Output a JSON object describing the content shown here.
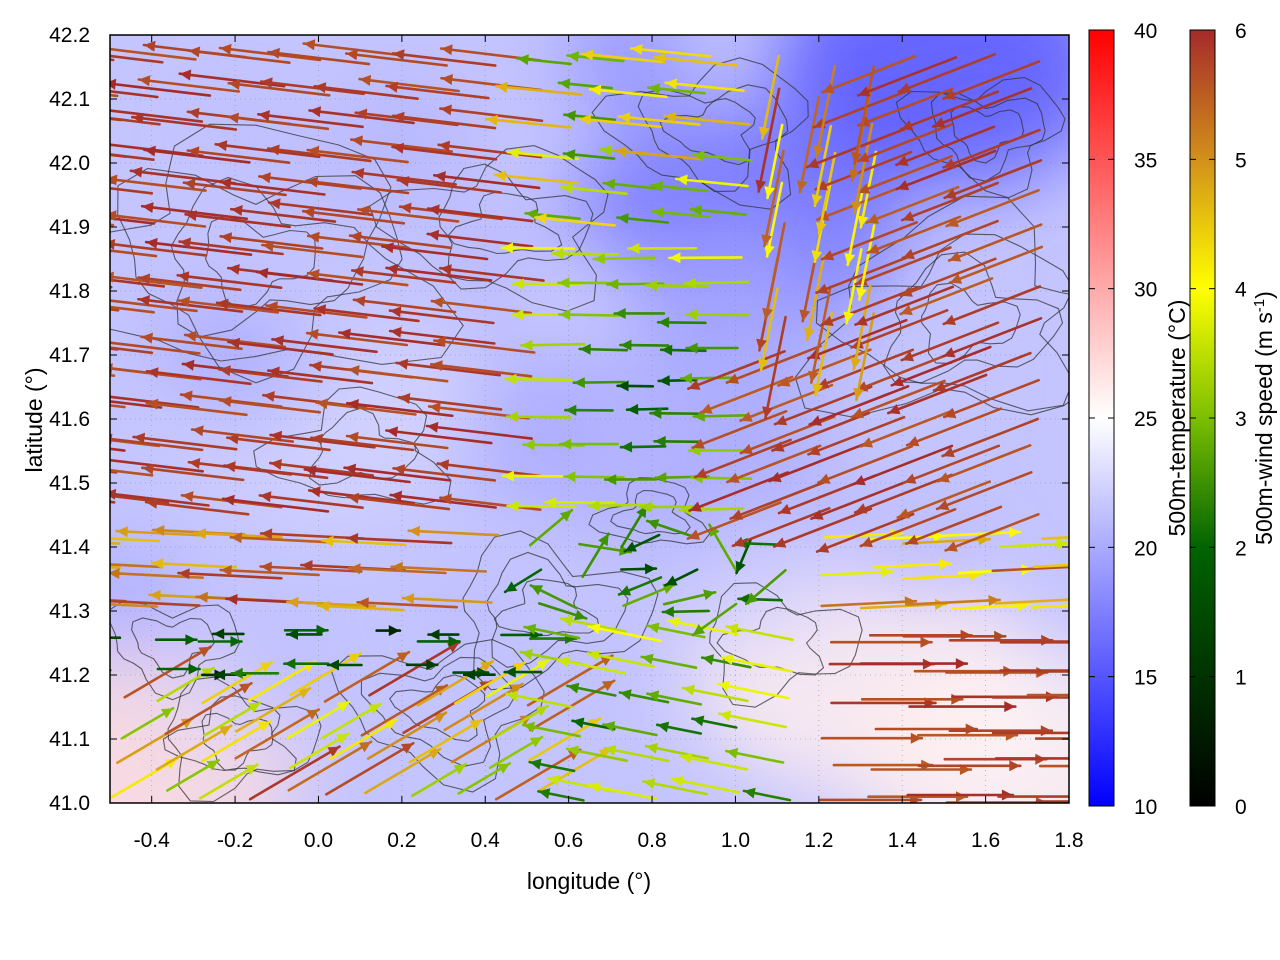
{
  "chart_data": {
    "type": "heatmap",
    "subtype": "temperature field with wind vectors and contour lines",
    "xlabel": "longitude (°)",
    "ylabel": "latitude (°)",
    "xlim": [
      -0.5,
      1.8
    ],
    "ylim": [
      41.0,
      42.2
    ],
    "xticks": [
      -0.4,
      -0.2,
      0.0,
      0.2,
      0.4,
      0.6,
      0.8,
      1.0,
      1.2,
      1.4,
      1.6,
      1.8
    ],
    "xtick_labels": [
      "-0.4",
      "-0.2",
      "0.0",
      "0.2",
      "0.4",
      "0.6",
      "0.8",
      "1.0",
      "1.2",
      "1.4",
      "1.6",
      "1.8"
    ],
    "yticks": [
      41.0,
      41.1,
      41.2,
      41.3,
      41.4,
      41.5,
      41.6,
      41.7,
      41.8,
      41.9,
      42.0,
      42.1,
      42.2
    ],
    "ytick_labels": [
      "41.0",
      "41.1",
      "41.2",
      "41.3",
      "41.4",
      "41.5",
      "41.6",
      "41.7",
      "41.8",
      "41.9",
      "42.0",
      "42.1",
      "42.2"
    ],
    "grid": true,
    "colorbars": [
      {
        "name": "temperature",
        "label": "500m-temperature (°C)",
        "range": [
          10,
          40
        ],
        "ticks": [
          10,
          15,
          20,
          25,
          30,
          35,
          40
        ],
        "tick_labels": [
          "10",
          "15",
          "20",
          "25",
          "30",
          "35",
          "40"
        ],
        "stops": [
          {
            "value": 10,
            "color": "#0000ff"
          },
          {
            "value": 25,
            "color": "#ffffff"
          },
          {
            "value": 40,
            "color": "#ff0000"
          }
        ]
      },
      {
        "name": "wind_speed",
        "label": "500m-wind speed (m s",
        "label_sup": "-1",
        "label_end": ")",
        "range": [
          0,
          6
        ],
        "ticks": [
          0,
          1,
          2,
          3,
          4,
          5,
          6
        ],
        "tick_labels": [
          "0",
          "1",
          "2",
          "3",
          "4",
          "5",
          "6"
        ],
        "stops": [
          {
            "value": 0,
            "color": "#000000"
          },
          {
            "value": 2,
            "color": "#006400"
          },
          {
            "value": 3,
            "color": "#7cbf00"
          },
          {
            "value": 4,
            "color": "#ffff00"
          },
          {
            "value": 5,
            "color": "#d2901a"
          },
          {
            "value": 6,
            "color": "#a52a2a"
          }
        ]
      }
    ],
    "temperature_field": {
      "description_points": [
        {
          "lon": -0.45,
          "lat": 41.05,
          "temp": 27
        },
        {
          "lon": 0.0,
          "lat": 41.6,
          "temp": 22
        },
        {
          "lon": 0.8,
          "lat": 41.6,
          "temp": 20
        },
        {
          "lon": 1.0,
          "lat": 41.9,
          "temp": 17
        },
        {
          "lon": 1.5,
          "lat": 42.15,
          "temp": 15
        },
        {
          "lon": 1.3,
          "lat": 41.2,
          "temp": 26
        },
        {
          "lon": 1.7,
          "lat": 41.05,
          "temp": 26
        }
      ]
    },
    "wind_vectors": [
      {
        "region": "north-west",
        "lon_range": [
          -0.5,
          0.6
        ],
        "lat_range": [
          41.5,
          42.2
        ],
        "direction": "westward",
        "speed": 6
      },
      {
        "region": "central",
        "lon_range": [
          0.5,
          1.1
        ],
        "lat_range": [
          41.2,
          41.7
        ],
        "direction": "variable",
        "speed": 2
      },
      {
        "region": "north-east",
        "lon_range": [
          1.1,
          1.8
        ],
        "lat_range": [
          41.5,
          42.0
        ],
        "direction": "south-westward",
        "speed": 6
      },
      {
        "region": "south-east",
        "lon_range": [
          1.2,
          1.8
        ],
        "lat_range": [
          41.0,
          41.35
        ],
        "direction": "eastward",
        "speed": 6
      },
      {
        "region": "south-west",
        "lon_range": [
          -0.5,
          0.6
        ],
        "lat_range": [
          41.0,
          41.3
        ],
        "direction": "north-eastward",
        "speed": 5
      }
    ]
  }
}
